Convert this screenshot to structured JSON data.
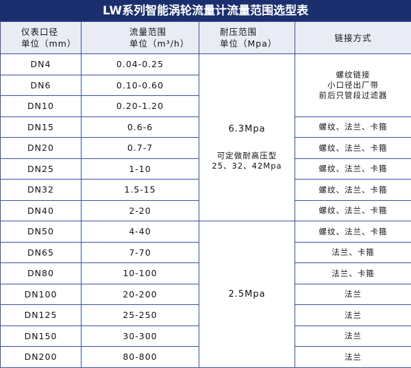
{
  "title": "LW系列智能涡轮流量计流量范围选型表",
  "headers": {
    "size": [
      "仪表口径",
      "单位（mm）"
    ],
    "flow": [
      "流量范围",
      "单位（m³/h）"
    ],
    "pressure": [
      "耐压范围",
      "单位（Mpa）"
    ],
    "connection": "链接方式"
  },
  "rows": [
    {
      "size": "DN4",
      "flow": "0.04-0.25"
    },
    {
      "size": "DN6",
      "flow": "0.10-0.60"
    },
    {
      "size": "DN10",
      "flow": "0.20-1.20"
    },
    {
      "size": "DN15",
      "flow": "0.6-6",
      "conn": "螺纹、法兰、卡箍"
    },
    {
      "size": "DN20",
      "flow": "0.7-7",
      "conn": "螺纹、法兰、卡箍"
    },
    {
      "size": "DN25",
      "flow": "1-10",
      "conn": "螺纹、法兰、卡箍"
    },
    {
      "size": "DN32",
      "flow": "1.5-15",
      "conn": "螺纹、法兰、卡箍"
    },
    {
      "size": "DN40",
      "flow": "2-20",
      "conn": "螺纹、法兰、卡箍"
    },
    {
      "size": "DN50",
      "flow": "4-40",
      "conn": "螺纹、法兰、卡箍"
    },
    {
      "size": "DN65",
      "flow": "7-70",
      "conn": "法兰、卡箍"
    },
    {
      "size": "DN80",
      "flow": "10-100",
      "conn": "法兰、卡箍"
    },
    {
      "size": "DN100",
      "flow": "20-200",
      "conn": "法兰"
    },
    {
      "size": "DN125",
      "flow": "25-250",
      "conn": "法兰"
    },
    {
      "size": "DN150",
      "flow": "30-300",
      "conn": "法兰"
    },
    {
      "size": "DN200",
      "flow": "80-800",
      "conn": "法兰"
    }
  ],
  "small_conn": [
    "螺纹链接",
    "小口径出厂带",
    "前后只管段过滤器"
  ],
  "pressure_high": {
    "value": "6.3Mpa",
    "note": [
      "可定做耐高压型",
      "25、32、42Mpa"
    ]
  },
  "pressure_low": "2.5Mpa",
  "colors": {
    "title_bg": "#1b2f6e",
    "header_bg": "#e9ecf4",
    "grid": "#34509c"
  }
}
